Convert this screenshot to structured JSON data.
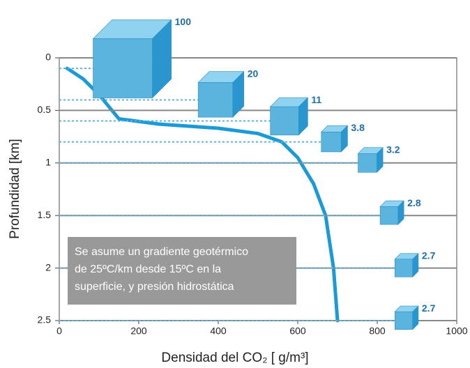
{
  "chart_data": {
    "type": "line",
    "xlabel": "Densidad del CO₂ [ g/m³]",
    "ylabel": "Profundidad [km]",
    "xlim": [
      0,
      1000
    ],
    "ylim": [
      0,
      2.5
    ],
    "xticks": [
      0,
      200,
      400,
      600,
      800,
      1000
    ],
    "yticks": [
      0,
      0.5,
      1,
      1.5,
      2,
      2.5
    ],
    "grid": true,
    "series": [
      {
        "color": "#1a9ad6",
        "x": [
          20,
          60,
          100,
          150,
          250,
          400,
          500,
          560,
          600,
          640,
          670,
          690,
          700
        ],
        "values": [
          0.1,
          0.2,
          0.35,
          0.58,
          0.63,
          0.67,
          0.72,
          0.8,
          0.95,
          1.2,
          1.5,
          2.0,
          2.5
        ]
      }
    ],
    "cubes": {
      "color": "#5ab4de",
      "depths": [
        0.1,
        0.4,
        0.6,
        0.8,
        1.0,
        1.5,
        2.0,
        2.5
      ],
      "volumes": [
        100,
        20,
        11,
        3.8,
        3.2,
        2.8,
        2.7,
        2.7
      ]
    },
    "annotation": [
      "Se asume un gradiente geotérmico",
      "de 25ºC/km desde 15ºC en la",
      "superficie, y presión hidrostática"
    ]
  }
}
